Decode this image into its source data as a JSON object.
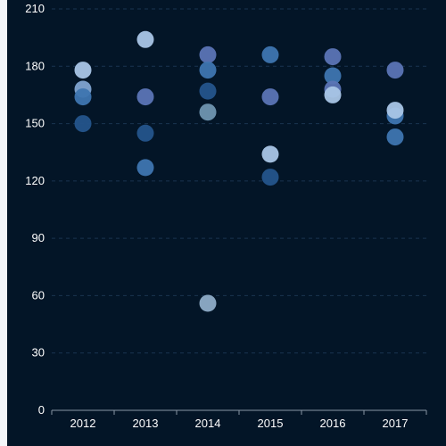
{
  "chart_data": {
    "type": "scatter",
    "categories": [
      "2012",
      "2013",
      "2014",
      "2015",
      "2016",
      "2017"
    ],
    "ylim": [
      0,
      210
    ],
    "yticks": [
      0,
      30,
      60,
      90,
      120,
      150,
      180,
      210
    ],
    "grid": true,
    "legend": "none",
    "background_color": "#031527",
    "grid_color": "#1a3550",
    "axis_color": "#8a97a6",
    "text_color": "#ffffff",
    "points": [
      {
        "category": "2012",
        "value": 178,
        "color": "#a9c5e6"
      },
      {
        "category": "2012",
        "value": 168,
        "color": "#7fa3d0"
      },
      {
        "category": "2012",
        "value": 164,
        "color": "#3e75b0"
      },
      {
        "category": "2012",
        "value": 150,
        "color": "#24548b"
      },
      {
        "category": "2013",
        "value": 194,
        "color": "#a9c5e6"
      },
      {
        "category": "2013",
        "value": 164,
        "color": "#5b74b5"
      },
      {
        "category": "2013",
        "value": 145,
        "color": "#24548b"
      },
      {
        "category": "2013",
        "value": 127,
        "color": "#3e75b0"
      },
      {
        "category": "2014",
        "value": 186,
        "color": "#5b74b5"
      },
      {
        "category": "2014",
        "value": 178,
        "color": "#3e75b0"
      },
      {
        "category": "2014",
        "value": 167,
        "color": "#24548b"
      },
      {
        "category": "2014",
        "value": 156,
        "color": "#6f95b0"
      },
      {
        "category": "2014",
        "value": 56,
        "color": "#8eacc7"
      },
      {
        "category": "2015",
        "value": 186,
        "color": "#3e75b0"
      },
      {
        "category": "2015",
        "value": 164,
        "color": "#5b74b5"
      },
      {
        "category": "2015",
        "value": 134,
        "color": "#a9c5e6"
      },
      {
        "category": "2015",
        "value": 122,
        "color": "#24548b"
      },
      {
        "category": "2016",
        "value": 185,
        "color": "#5b74b5"
      },
      {
        "category": "2016",
        "value": 175,
        "color": "#3e75b0"
      },
      {
        "category": "2016",
        "value": 168,
        "color": "#5b74b5"
      },
      {
        "category": "2016",
        "value": 165,
        "color": "#a9c5e6"
      },
      {
        "category": "2017",
        "value": 178,
        "color": "#5b74b5"
      },
      {
        "category": "2017",
        "value": 154,
        "color": "#3e75b0"
      },
      {
        "category": "2017",
        "value": 157,
        "color": "#a9c5e6"
      },
      {
        "category": "2017",
        "value": 143,
        "color": "#3e75b0"
      }
    ]
  }
}
